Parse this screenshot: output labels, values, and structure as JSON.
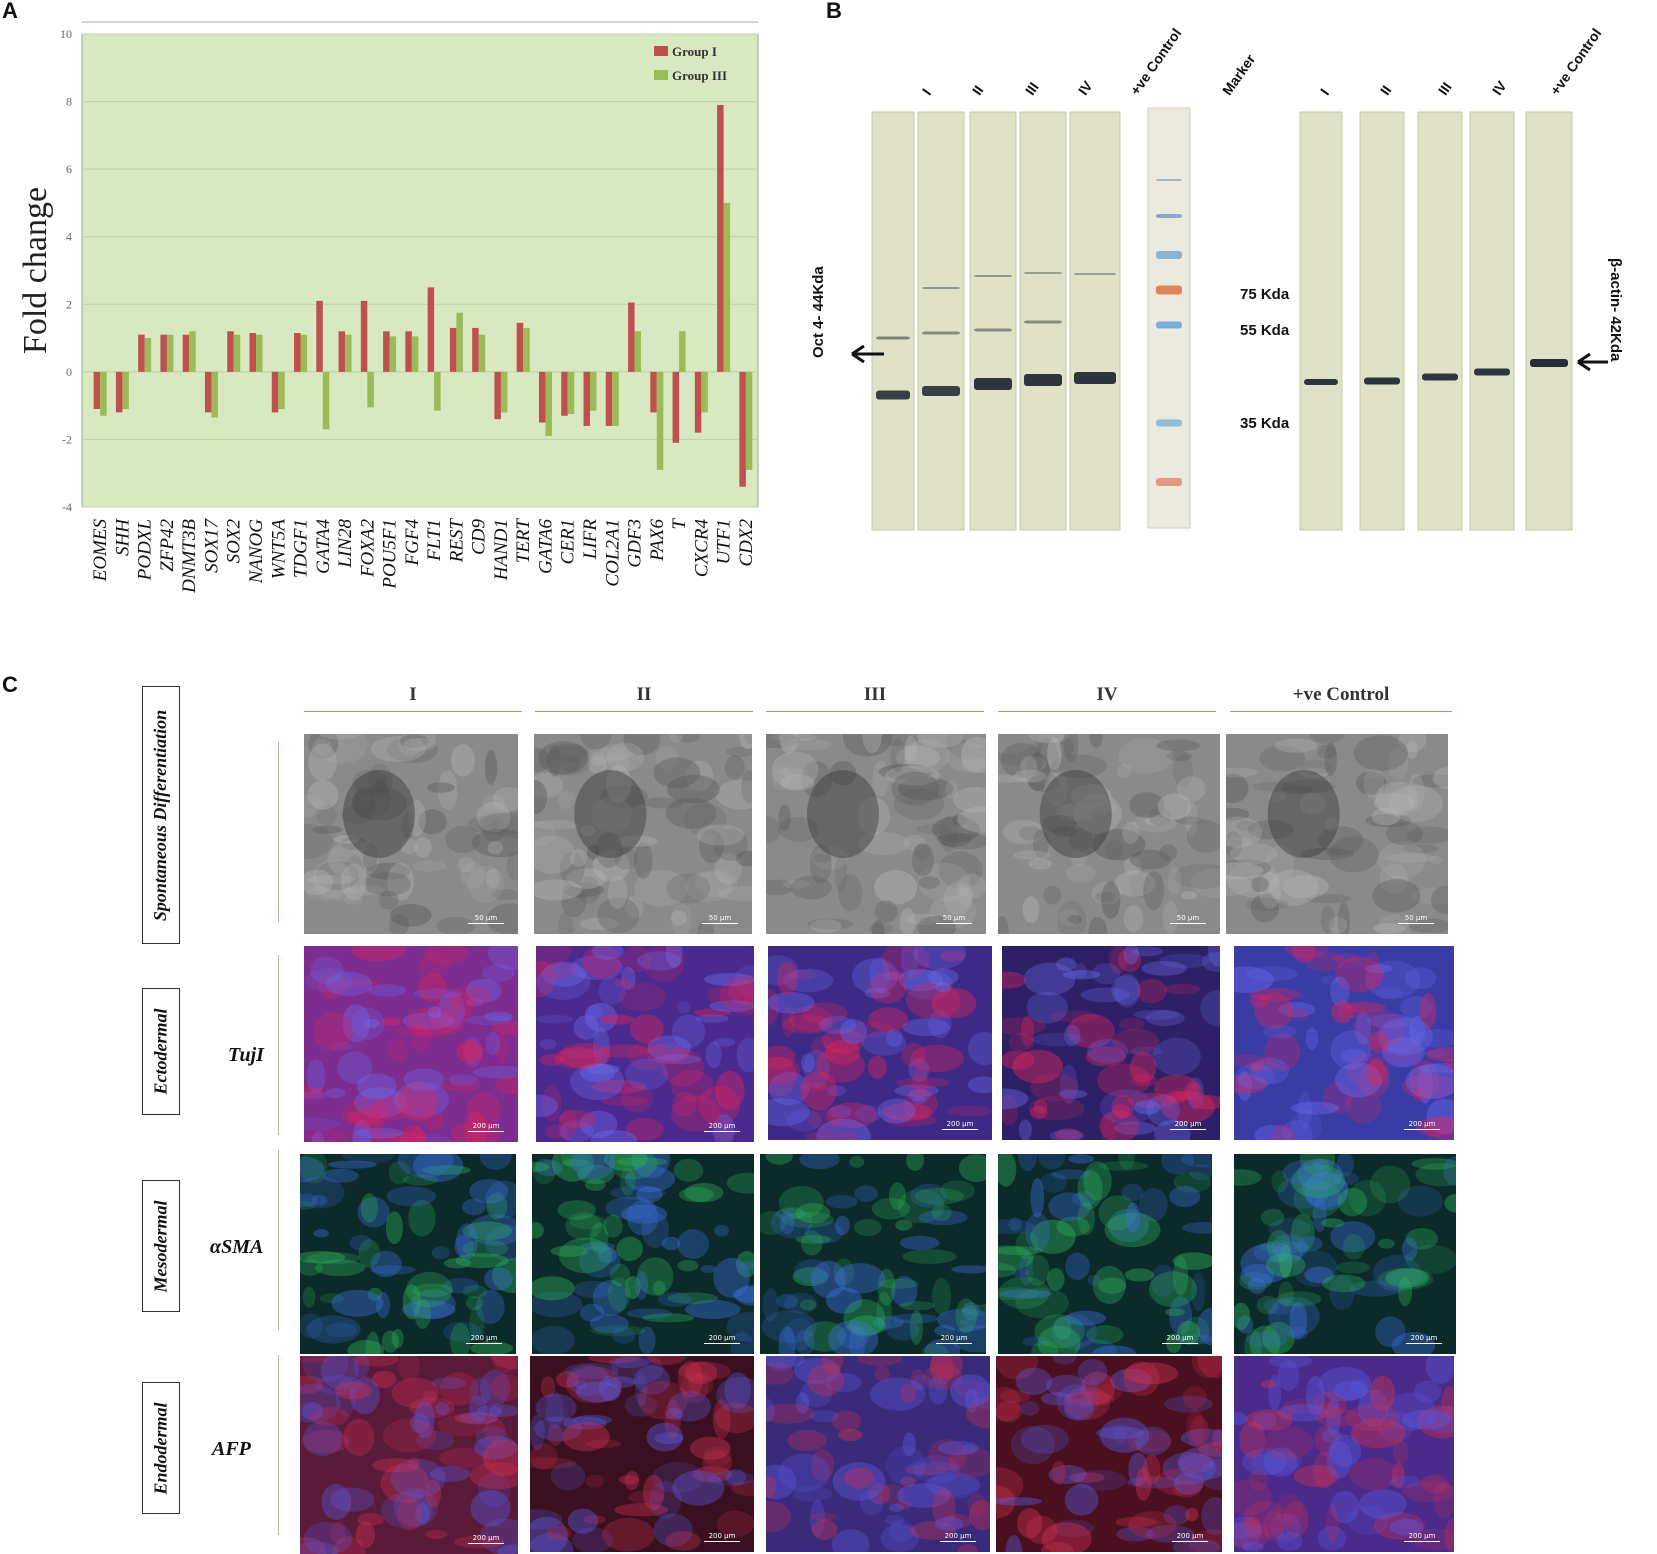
{
  "panels": {
    "a": "A",
    "b": "B",
    "c": "C"
  },
  "chart_data": {
    "type": "bar",
    "ylabel": "Fold change",
    "ylim": [
      -4,
      10
    ],
    "yticks": [
      -4,
      -2,
      0,
      2,
      4,
      6,
      8,
      10
    ],
    "legend_position": "top-right",
    "grid": true,
    "background": "#d8e8c0",
    "categories": [
      "EOMES",
      "SHH",
      "PODXL",
      "ZFP42",
      "DNMT3B",
      "SOX17",
      "SOX2",
      "NANOG",
      "WNT5A",
      "TDGF1",
      "GATA4",
      "LIN28",
      "FOXA2",
      "POU5F1",
      "FGF4",
      "FLT1",
      "REST",
      "CD9",
      "HAND1",
      "TERT",
      "GATA6",
      "CER1",
      "LIFR",
      "COL2A1",
      "GDF3",
      "PAX6",
      "T",
      "CXCR4",
      "UTF1",
      "CDX2"
    ],
    "series": [
      {
        "name": "Group I",
        "color": "#c0504d",
        "values": [
          -1.1,
          -1.2,
          1.1,
          1.1,
          1.1,
          -1.2,
          1.2,
          1.15,
          -1.2,
          1.15,
          2.1,
          1.2,
          2.1,
          1.2,
          1.2,
          2.5,
          1.3,
          1.3,
          -1.4,
          1.45,
          -1.5,
          -1.3,
          -1.6,
          -1.6,
          2.05,
          -1.2,
          -2.1,
          -1.8,
          7.9,
          -3.4
        ]
      },
      {
        "name": "Group III",
        "color": "#9bbb59",
        "values": [
          -1.3,
          -1.1,
          1.0,
          1.1,
          1.2,
          -1.35,
          1.1,
          1.1,
          -1.1,
          1.1,
          -1.7,
          1.1,
          -1.05,
          1.05,
          1.05,
          -1.15,
          1.75,
          1.1,
          -1.2,
          1.3,
          -1.9,
          -1.25,
          -1.15,
          -1.6,
          1.2,
          -2.9,
          1.2,
          -1.2,
          5.0,
          -2.9
        ]
      }
    ]
  },
  "western_blot": {
    "lanes_left": [
      "I",
      "II",
      "III",
      "IV",
      "+ve Control"
    ],
    "marker_label": "Marker",
    "lanes_right": [
      "I",
      "II",
      "III",
      "IV",
      "+ve Control"
    ],
    "kda": [
      "75 Kda",
      "55 Kda",
      "35 Kda"
    ],
    "left_target": "Oct 4- 44Kda",
    "right_target": "β-actin- 42Kda"
  },
  "panel_c": {
    "columns": [
      "I",
      "II",
      "III",
      "IV",
      "+ve Control"
    ],
    "rows": [
      {
        "box": "Spontaneous Differentiation",
        "marker": "",
        "scale": "50 µm",
        "type": "phase"
      },
      {
        "box": "Ectodermal",
        "marker": "TujI",
        "scale": "200 µm",
        "type": "red"
      },
      {
        "box": "Mesodermal",
        "marker": "αSMA",
        "scale": "200 µm",
        "type": "green"
      },
      {
        "box": "Endodermal",
        "marker": "AFP",
        "scale": "200 µm",
        "type": "red2"
      }
    ]
  },
  "colors": {
    "group1": "#c0504d",
    "group3": "#9bbb59",
    "plot_bg": "#d8e8c0"
  }
}
